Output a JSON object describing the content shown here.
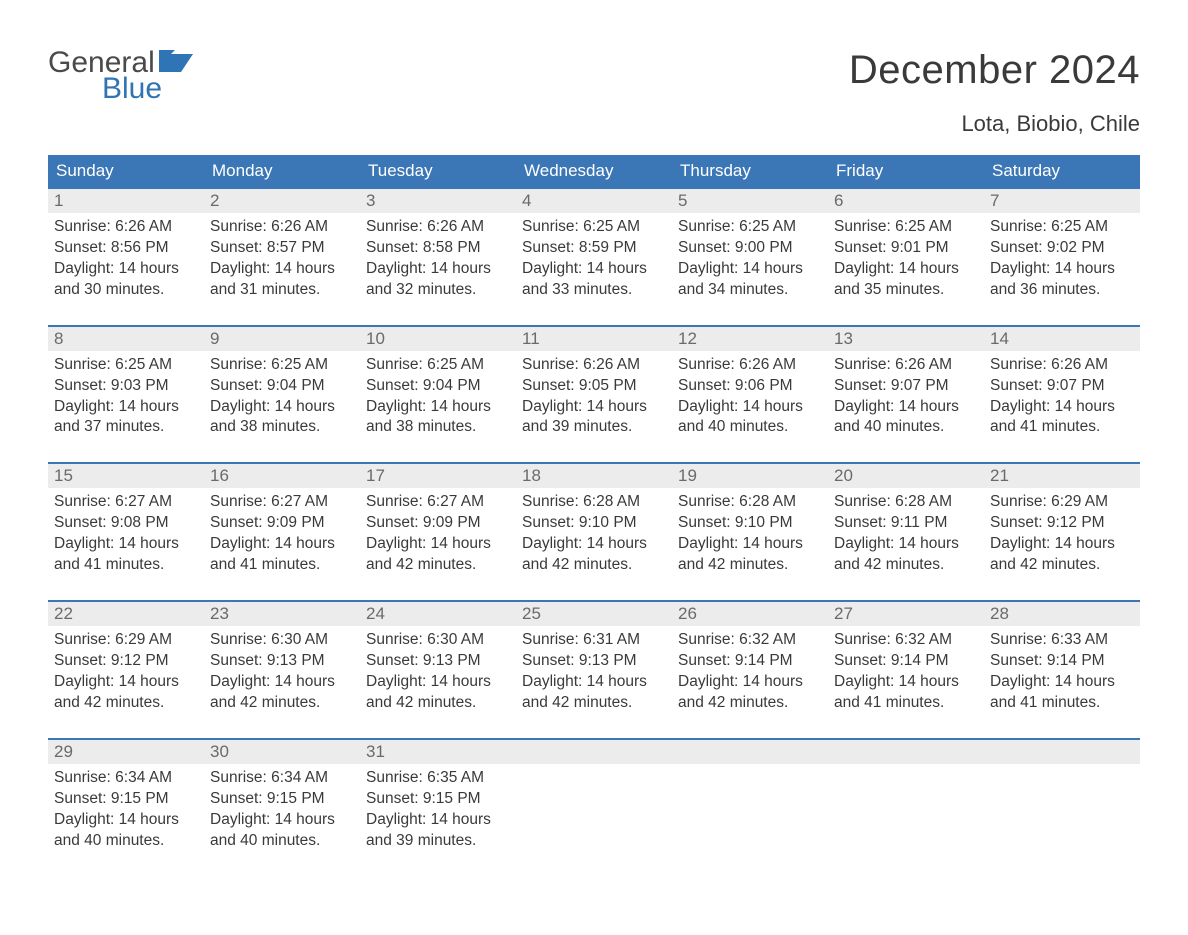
{
  "brand": {
    "part1": "General",
    "part2": "Blue",
    "color1": "#4a4a4a",
    "color2": "#2f74b5"
  },
  "title": "December 2024",
  "location": "Lota, Biobio, Chile",
  "style": {
    "header_bg": "#3b76b6",
    "header_text_color": "#ffffff",
    "week_border_color": "#3b76b6",
    "daynum_bg": "#ececec",
    "daynum_color": "#6a6a6a",
    "body_text_color": "#3a3a3a",
    "background_color": "#ffffff",
    "title_fontsize": 40,
    "location_fontsize": 22,
    "dayheader_fontsize": 17,
    "daydata_fontsize": 15.5,
    "columns": 7
  },
  "dayNames": [
    "Sunday",
    "Monday",
    "Tuesday",
    "Wednesday",
    "Thursday",
    "Friday",
    "Saturday"
  ],
  "weeks": [
    [
      {
        "n": "1",
        "sunrise": "6:26 AM",
        "sunset": "8:56 PM",
        "dl1": "14 hours",
        "dl2": "30 minutes."
      },
      {
        "n": "2",
        "sunrise": "6:26 AM",
        "sunset": "8:57 PM",
        "dl1": "14 hours",
        "dl2": "31 minutes."
      },
      {
        "n": "3",
        "sunrise": "6:26 AM",
        "sunset": "8:58 PM",
        "dl1": "14 hours",
        "dl2": "32 minutes."
      },
      {
        "n": "4",
        "sunrise": "6:25 AM",
        "sunset": "8:59 PM",
        "dl1": "14 hours",
        "dl2": "33 minutes."
      },
      {
        "n": "5",
        "sunrise": "6:25 AM",
        "sunset": "9:00 PM",
        "dl1": "14 hours",
        "dl2": "34 minutes."
      },
      {
        "n": "6",
        "sunrise": "6:25 AM",
        "sunset": "9:01 PM",
        "dl1": "14 hours",
        "dl2": "35 minutes."
      },
      {
        "n": "7",
        "sunrise": "6:25 AM",
        "sunset": "9:02 PM",
        "dl1": "14 hours",
        "dl2": "36 minutes."
      }
    ],
    [
      {
        "n": "8",
        "sunrise": "6:25 AM",
        "sunset": "9:03 PM",
        "dl1": "14 hours",
        "dl2": "37 minutes."
      },
      {
        "n": "9",
        "sunrise": "6:25 AM",
        "sunset": "9:04 PM",
        "dl1": "14 hours",
        "dl2": "38 minutes."
      },
      {
        "n": "10",
        "sunrise": "6:25 AM",
        "sunset": "9:04 PM",
        "dl1": "14 hours",
        "dl2": "38 minutes."
      },
      {
        "n": "11",
        "sunrise": "6:26 AM",
        "sunset": "9:05 PM",
        "dl1": "14 hours",
        "dl2": "39 minutes."
      },
      {
        "n": "12",
        "sunrise": "6:26 AM",
        "sunset": "9:06 PM",
        "dl1": "14 hours",
        "dl2": "40 minutes."
      },
      {
        "n": "13",
        "sunrise": "6:26 AM",
        "sunset": "9:07 PM",
        "dl1": "14 hours",
        "dl2": "40 minutes."
      },
      {
        "n": "14",
        "sunrise": "6:26 AM",
        "sunset": "9:07 PM",
        "dl1": "14 hours",
        "dl2": "41 minutes."
      }
    ],
    [
      {
        "n": "15",
        "sunrise": "6:27 AM",
        "sunset": "9:08 PM",
        "dl1": "14 hours",
        "dl2": "41 minutes."
      },
      {
        "n": "16",
        "sunrise": "6:27 AM",
        "sunset": "9:09 PM",
        "dl1": "14 hours",
        "dl2": "41 minutes."
      },
      {
        "n": "17",
        "sunrise": "6:27 AM",
        "sunset": "9:09 PM",
        "dl1": "14 hours",
        "dl2": "42 minutes."
      },
      {
        "n": "18",
        "sunrise": "6:28 AM",
        "sunset": "9:10 PM",
        "dl1": "14 hours",
        "dl2": "42 minutes."
      },
      {
        "n": "19",
        "sunrise": "6:28 AM",
        "sunset": "9:10 PM",
        "dl1": "14 hours",
        "dl2": "42 minutes."
      },
      {
        "n": "20",
        "sunrise": "6:28 AM",
        "sunset": "9:11 PM",
        "dl1": "14 hours",
        "dl2": "42 minutes."
      },
      {
        "n": "21",
        "sunrise": "6:29 AM",
        "sunset": "9:12 PM",
        "dl1": "14 hours",
        "dl2": "42 minutes."
      }
    ],
    [
      {
        "n": "22",
        "sunrise": "6:29 AM",
        "sunset": "9:12 PM",
        "dl1": "14 hours",
        "dl2": "42 minutes."
      },
      {
        "n": "23",
        "sunrise": "6:30 AM",
        "sunset": "9:13 PM",
        "dl1": "14 hours",
        "dl2": "42 minutes."
      },
      {
        "n": "24",
        "sunrise": "6:30 AM",
        "sunset": "9:13 PM",
        "dl1": "14 hours",
        "dl2": "42 minutes."
      },
      {
        "n": "25",
        "sunrise": "6:31 AM",
        "sunset": "9:13 PM",
        "dl1": "14 hours",
        "dl2": "42 minutes."
      },
      {
        "n": "26",
        "sunrise": "6:32 AM",
        "sunset": "9:14 PM",
        "dl1": "14 hours",
        "dl2": "42 minutes."
      },
      {
        "n": "27",
        "sunrise": "6:32 AM",
        "sunset": "9:14 PM",
        "dl1": "14 hours",
        "dl2": "41 minutes."
      },
      {
        "n": "28",
        "sunrise": "6:33 AM",
        "sunset": "9:14 PM",
        "dl1": "14 hours",
        "dl2": "41 minutes."
      }
    ],
    [
      {
        "n": "29",
        "sunrise": "6:34 AM",
        "sunset": "9:15 PM",
        "dl1": "14 hours",
        "dl2": "40 minutes."
      },
      {
        "n": "30",
        "sunrise": "6:34 AM",
        "sunset": "9:15 PM",
        "dl1": "14 hours",
        "dl2": "40 minutes."
      },
      {
        "n": "31",
        "sunrise": "6:35 AM",
        "sunset": "9:15 PM",
        "dl1": "14 hours",
        "dl2": "39 minutes."
      },
      null,
      null,
      null,
      null
    ]
  ],
  "labels": {
    "sunrise": "Sunrise:",
    "sunset": "Sunset:",
    "daylight": "Daylight:",
    "and": "and"
  }
}
